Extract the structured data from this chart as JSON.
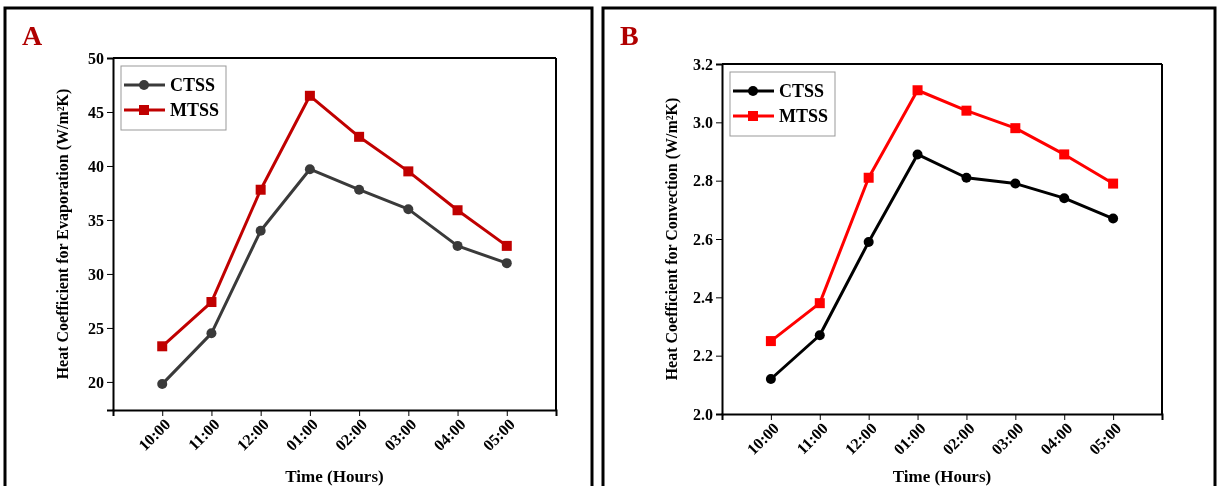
{
  "chart_data": [
    {
      "type": "line",
      "title": "A",
      "xlabel": "Time (Hours)",
      "ylabel": "Heat Coefficient for Evaporation (W/m²K)",
      "categories": [
        "10:00",
        "11:00",
        "12:00",
        "01:00",
        "02:00",
        "03:00",
        "04:00",
        "05:00"
      ],
      "series": [
        {
          "name": "CTSS",
          "color": "#3a3a3a",
          "marker": "circle",
          "values": [
            19.8,
            24.5,
            34.0,
            39.7,
            37.8,
            36.0,
            32.6,
            31.0
          ]
        },
        {
          "name": "MTSS",
          "color": "#c00000",
          "marker": "square",
          "values": [
            23.3,
            27.4,
            37.8,
            46.5,
            42.7,
            39.5,
            35.9,
            32.6
          ]
        }
      ],
      "ylim": [
        17.4,
        50
      ],
      "yticks": [
        20,
        25,
        30,
        35,
        40,
        45,
        50
      ],
      "grid": false,
      "legend": "top left",
      "line_style": "solid"
    },
    {
      "type": "line",
      "title": "B",
      "xlabel": "Time (Hours)",
      "ylabel": "Heat Coefficient for Convection (W/m²K)",
      "categories": [
        "10:00",
        "11:00",
        "12:00",
        "01:00",
        "02:00",
        "03:00",
        "04:00",
        "05:00"
      ],
      "series": [
        {
          "name": "CTSS",
          "color": "#000000",
          "marker": "circle",
          "values": [
            2.12,
            2.27,
            2.59,
            2.89,
            2.81,
            2.79,
            2.74,
            2.67
          ]
        },
        {
          "name": "MTSS",
          "color": "#ff0000",
          "marker": "square",
          "values": [
            2.25,
            2.38,
            2.81,
            3.11,
            3.04,
            2.98,
            2.89,
            2.79
          ]
        }
      ],
      "ylim": [
        2.0,
        3.2
      ],
      "yticks": [
        {
          "value": 2.0,
          "label": "2.0"
        },
        {
          "value": 2.2,
          "label": "2.2"
        },
        {
          "value": 2.4,
          "label": "2.4"
        },
        {
          "value": 2.6,
          "label": "2.6"
        },
        {
          "value": 2.8,
          "label": "2.8"
        },
        {
          "value": 3.0,
          "label": "3.0"
        },
        {
          "value": 3.2,
          "label": "3.2"
        }
      ],
      "grid": false,
      "legend": "top left",
      "line_style": "solid"
    }
  ]
}
